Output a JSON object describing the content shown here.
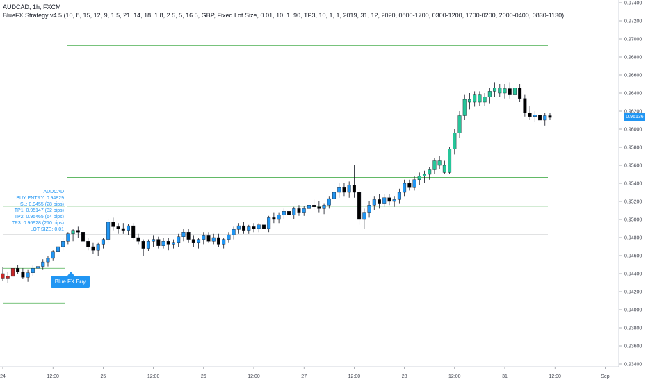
{
  "header": {
    "symbol_line": "AUDCAD, 1h, FXCM",
    "strategy_line": "BlueFX Strategy v4.5 (10, 8, 15, 12, 9, 1.5, 21, 14, 18, 1.8, 2.5, 5, 16.5, GBP, Fixed Lot Size, 0.01, 10, 1, 90, TP3, 10, 1, 1, 2019, 31, 12, 2020, 0800-1700, 0300-1200, 1700-0200, 2000-0400, 0830-1130)"
  },
  "trade_info": {
    "symbol": "AUDCAD",
    "buy_entry": "BUY ENTRY: 0.94829",
    "sl": "SL: 0.9455 (28 pips)",
    "tp1": "TP1: 0.95147 (32 pips)",
    "tp2": "TP2: 0.95465 (64 pips)",
    "tp3": "TP3: 0.96928 (210 pips)",
    "lot_size": "LOT SIZE: 0.01"
  },
  "signal_label": "Blue FX Buy",
  "last_price_label": "0.96136",
  "colors": {
    "bull": "#2196f3",
    "bull_strong": "#26c69a",
    "bear": "#000000",
    "bear_red": "#c62828",
    "entry_line": "#131722",
    "sl_line": "#ef5350",
    "tp_line": "#4caf50",
    "last_price_line": "#2196f3"
  },
  "chart_data": {
    "type": "candlestick",
    "symbol": "AUDCAD",
    "timeframe": "1h",
    "y_axis": {
      "ylim": [
        0.933,
        0.9745
      ],
      "tick_labels": [
        "0.97400",
        "0.97200",
        "0.97000",
        "0.96800",
        "0.96600",
        "0.96400",
        "0.96200",
        "0.96000",
        "0.95800",
        "0.95600",
        "0.95400",
        "0.95200",
        "0.95000",
        "0.94800",
        "0.94600",
        "0.94400",
        "0.94200",
        "0.94000",
        "0.93800",
        "0.93600",
        "0.93400"
      ],
      "tick_values": [
        0.974,
        0.972,
        0.97,
        0.968,
        0.966,
        0.964,
        0.962,
        0.96,
        0.958,
        0.956,
        0.954,
        0.952,
        0.95,
        0.948,
        0.946,
        0.944,
        0.942,
        0.94,
        0.938,
        0.936,
        0.934
      ]
    },
    "x_axis": {
      "tick_labels": [
        "24",
        "12:00",
        "25",
        "12:00",
        "26",
        "12:00",
        "27",
        "12:00",
        "28",
        "12:00",
        "31",
        "12:00",
        "Sep"
      ],
      "tick_bar_index": [
        0,
        10,
        20,
        30,
        40,
        50,
        60,
        70,
        80,
        90,
        100,
        110,
        120
      ]
    },
    "levels": {
      "entry": 0.94829,
      "sl": 0.9455,
      "tp1": 0.95147,
      "tp2": 0.95465,
      "tp3": 0.96928,
      "last_price": 0.96136
    },
    "candles": [
      [
        0.944,
        0.9447,
        0.9432,
        0.9435,
        "r"
      ],
      [
        0.9435,
        0.9442,
        0.943,
        0.9437,
        "r"
      ],
      [
        0.9437,
        0.9448,
        0.9434,
        0.9446,
        "r"
      ],
      [
        0.9446,
        0.945,
        0.944,
        0.9442,
        "b"
      ],
      [
        0.9442,
        0.9446,
        0.9434,
        0.9436,
        "b"
      ],
      [
        0.9436,
        0.9444,
        0.9431,
        0.9441,
        "u"
      ],
      [
        0.9441,
        0.9449,
        0.9437,
        0.9446,
        "u"
      ],
      [
        0.9446,
        0.9452,
        0.944,
        0.9448,
        "u"
      ],
      [
        0.9448,
        0.9456,
        0.9444,
        0.9453,
        "u"
      ],
      [
        0.9453,
        0.946,
        0.9448,
        0.9457,
        "u"
      ],
      [
        0.9457,
        0.9466,
        0.9454,
        0.9464,
        "u"
      ],
      [
        0.9464,
        0.9472,
        0.9459,
        0.947,
        "u"
      ],
      [
        0.947,
        0.9479,
        0.9466,
        0.9476,
        "u"
      ],
      [
        0.9476,
        0.9486,
        0.9472,
        0.9484,
        "u"
      ],
      [
        0.9484,
        0.949,
        0.9476,
        0.9488,
        "g"
      ],
      [
        0.9488,
        0.9492,
        0.948,
        0.9486,
        "b"
      ],
      [
        0.9486,
        0.949,
        0.9474,
        0.9476,
        "b"
      ],
      [
        0.9476,
        0.948,
        0.9466,
        0.947,
        "b"
      ],
      [
        0.947,
        0.9474,
        0.9462,
        0.9466,
        "b"
      ],
      [
        0.9466,
        0.9474,
        0.946,
        0.9472,
        "u"
      ],
      [
        0.9472,
        0.948,
        0.9468,
        0.9478,
        "u"
      ],
      [
        0.9478,
        0.95,
        0.9474,
        0.9497,
        "u"
      ],
      [
        0.9497,
        0.9502,
        0.9488,
        0.9492,
        "b"
      ],
      [
        0.9492,
        0.9496,
        0.9484,
        0.949,
        "b"
      ],
      [
        0.949,
        0.9496,
        0.9484,
        0.9488,
        "b"
      ],
      [
        0.9488,
        0.9495,
        0.9483,
        0.9493,
        "u"
      ],
      [
        0.9493,
        0.9496,
        0.9478,
        0.948,
        "b"
      ],
      [
        0.948,
        0.9484,
        0.9472,
        0.9476,
        "b"
      ],
      [
        0.9476,
        0.9478,
        0.946,
        0.9468,
        "b"
      ],
      [
        0.9468,
        0.9478,
        0.9465,
        0.9476,
        "u"
      ],
      [
        0.9476,
        0.9482,
        0.947,
        0.9478,
        "u"
      ],
      [
        0.9478,
        0.9481,
        0.9468,
        0.9471,
        "b"
      ],
      [
        0.9471,
        0.948,
        0.9468,
        0.9476,
        "u"
      ],
      [
        0.9476,
        0.948,
        0.9466,
        0.9472,
        "b"
      ],
      [
        0.9472,
        0.9478,
        0.9468,
        0.9474,
        "u"
      ],
      [
        0.9474,
        0.9484,
        0.947,
        0.9481,
        "u"
      ],
      [
        0.9481,
        0.949,
        0.9476,
        0.9486,
        "u"
      ],
      [
        0.9486,
        0.949,
        0.9474,
        0.9478,
        "b"
      ],
      [
        0.9478,
        0.9482,
        0.947,
        0.9474,
        "b"
      ],
      [
        0.9474,
        0.948,
        0.9468,
        0.9478,
        "u"
      ],
      [
        0.9478,
        0.9486,
        0.9472,
        0.9482,
        "u"
      ],
      [
        0.9482,
        0.9486,
        0.9474,
        0.9476,
        "b"
      ],
      [
        0.9476,
        0.9484,
        0.9472,
        0.948,
        "u"
      ],
      [
        0.948,
        0.9484,
        0.947,
        0.9472,
        "b"
      ],
      [
        0.9472,
        0.948,
        0.9468,
        0.9478,
        "u"
      ],
      [
        0.9478,
        0.9486,
        0.9474,
        0.9483,
        "u"
      ],
      [
        0.9483,
        0.9492,
        0.9478,
        0.9489,
        "u"
      ],
      [
        0.9489,
        0.9496,
        0.9484,
        0.9493,
        "u"
      ],
      [
        0.9493,
        0.9497,
        0.9484,
        0.9488,
        "b"
      ],
      [
        0.9488,
        0.9494,
        0.9484,
        0.9492,
        "u"
      ],
      [
        0.9492,
        0.9496,
        0.9486,
        0.949,
        "b"
      ],
      [
        0.949,
        0.9496,
        0.9486,
        0.9494,
        "u"
      ],
      [
        0.9494,
        0.95,
        0.9488,
        0.949,
        "b"
      ],
      [
        0.949,
        0.9504,
        0.9486,
        0.9502,
        "u"
      ],
      [
        0.9502,
        0.9508,
        0.9496,
        0.95,
        "b"
      ],
      [
        0.95,
        0.9508,
        0.9496,
        0.9505,
        "u"
      ],
      [
        0.9505,
        0.9512,
        0.95,
        0.9509,
        "u"
      ],
      [
        0.9509,
        0.9513,
        0.9502,
        0.9505,
        "b"
      ],
      [
        0.9505,
        0.9514,
        0.95,
        0.9512,
        "u"
      ],
      [
        0.9512,
        0.9516,
        0.9504,
        0.9508,
        "b"
      ],
      [
        0.9508,
        0.9515,
        0.9504,
        0.9512,
        "u"
      ],
      [
        0.9512,
        0.9519,
        0.9506,
        0.9516,
        "u"
      ],
      [
        0.9516,
        0.9522,
        0.951,
        0.9514,
        "b"
      ],
      [
        0.9514,
        0.952,
        0.9508,
        0.9512,
        "b"
      ],
      [
        0.9512,
        0.9518,
        0.9506,
        0.9516,
        "u"
      ],
      [
        0.9516,
        0.9526,
        0.9512,
        0.9523,
        "u"
      ],
      [
        0.9523,
        0.9532,
        0.9518,
        0.953,
        "u"
      ],
      [
        0.953,
        0.954,
        0.9524,
        0.9536,
        "u"
      ],
      [
        0.9536,
        0.954,
        0.9526,
        0.953,
        "b"
      ],
      [
        0.953,
        0.9542,
        0.9524,
        0.9538,
        "u"
      ],
      [
        0.9538,
        0.956,
        0.9524,
        0.953,
        "b"
      ],
      [
        0.953,
        0.9534,
        0.9494,
        0.95,
        "b"
      ],
      [
        0.95,
        0.9512,
        0.949,
        0.9508,
        "u"
      ],
      [
        0.9508,
        0.952,
        0.9502,
        0.9516,
        "u"
      ],
      [
        0.9516,
        0.9526,
        0.951,
        0.9522,
        "u"
      ],
      [
        0.9522,
        0.9528,
        0.9512,
        0.9518,
        "b"
      ],
      [
        0.9518,
        0.9528,
        0.9514,
        0.9524,
        "u"
      ],
      [
        0.9524,
        0.9528,
        0.9516,
        0.952,
        "b"
      ],
      [
        0.952,
        0.9526,
        0.9514,
        0.9522,
        "u"
      ],
      [
        0.9522,
        0.9534,
        0.9518,
        0.953,
        "u"
      ],
      [
        0.953,
        0.9544,
        0.9526,
        0.954,
        "u"
      ],
      [
        0.954,
        0.9544,
        0.9532,
        0.9536,
        "b"
      ],
      [
        0.9536,
        0.9548,
        0.9532,
        0.9544,
        "u"
      ],
      [
        0.9544,
        0.9552,
        0.9538,
        0.9548,
        "g"
      ],
      [
        0.9548,
        0.9554,
        0.954,
        0.955,
        "g"
      ],
      [
        0.955,
        0.9558,
        0.9544,
        0.9555,
        "g"
      ],
      [
        0.9555,
        0.9568,
        0.955,
        0.9565,
        "g"
      ],
      [
        0.9565,
        0.957,
        0.9556,
        0.956,
        "g"
      ],
      [
        0.956,
        0.9565,
        0.955,
        0.9552,
        "g"
      ],
      [
        0.9552,
        0.958,
        0.955,
        0.9578,
        "g"
      ],
      [
        0.9578,
        0.96,
        0.9572,
        0.9596,
        "g"
      ],
      [
        0.9596,
        0.962,
        0.959,
        0.9615,
        "g"
      ],
      [
        0.9615,
        0.9638,
        0.961,
        0.9633,
        "g"
      ],
      [
        0.9633,
        0.964,
        0.9622,
        0.963,
        "g"
      ],
      [
        0.963,
        0.9642,
        0.9625,
        0.9638,
        "g"
      ],
      [
        0.9638,
        0.9642,
        0.9626,
        0.963,
        "g"
      ],
      [
        0.963,
        0.964,
        0.9626,
        0.9636,
        "g"
      ],
      [
        0.9636,
        0.9646,
        0.9628,
        0.9642,
        "g"
      ],
      [
        0.9642,
        0.9652,
        0.9636,
        0.9646,
        "g"
      ],
      [
        0.9646,
        0.965,
        0.9636,
        0.964,
        "g"
      ],
      [
        0.964,
        0.965,
        0.9634,
        0.9645,
        "g"
      ],
      [
        0.9645,
        0.9652,
        0.9634,
        0.9638,
        "b"
      ],
      [
        0.9638,
        0.965,
        0.9632,
        0.9646,
        "g"
      ],
      [
        0.9646,
        0.965,
        0.963,
        0.9634,
        "b"
      ],
      [
        0.9634,
        0.9638,
        0.9614,
        0.9618,
        "b"
      ],
      [
        0.9618,
        0.9626,
        0.961,
        0.9614,
        "b"
      ],
      [
        0.9614,
        0.962,
        0.9608,
        0.9616,
        "u"
      ],
      [
        0.9616,
        0.962,
        0.9606,
        0.961,
        "b"
      ],
      [
        0.961,
        0.9618,
        0.9604,
        0.9615,
        "u"
      ],
      [
        0.9615,
        0.9618,
        0.961,
        0.9613,
        "b"
      ]
    ]
  }
}
